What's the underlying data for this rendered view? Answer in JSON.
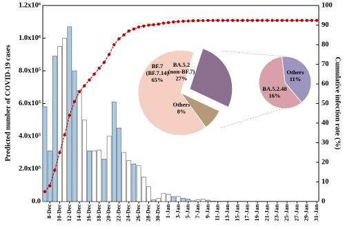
{
  "chart_data": [
    {
      "type": "bar",
      "y_label": "Predicted number of COVID-19 cases",
      "y2_label": "Cumulative infection rate (%)",
      "categories": [
        null,
        "8-Dec",
        null,
        "10-Dec",
        null,
        "12-Dec",
        null,
        "14-Dec",
        null,
        "16-Dec",
        null,
        "18-Dec",
        null,
        "20-Dec",
        null,
        "22-Dec",
        null,
        "24-Dec",
        null,
        "26-Dec",
        null,
        "28-Dec",
        null,
        "30-Dec",
        null,
        "1-Jan",
        null,
        "3-Jan",
        null,
        "5-Jan",
        null,
        "7-Jan",
        null,
        "9-Jan",
        null,
        "11-Jan",
        null,
        "13-Jan",
        null,
        "15-Jan",
        null,
        "17-Jan",
        null,
        "19-Jan",
        null,
        "21-Jan",
        null,
        "23-Jan",
        null,
        "25-Jan",
        null,
        "27-Jan",
        null,
        "29-Jan",
        null,
        "31-Jan"
      ],
      "series": [
        {
          "color": "#a9cbe3",
          "values": [
            580000,
            310000,
            890000,
            null,
            null,
            1070000,
            800000,
            null,
            null,
            310000,
            null,
            null,
            260000,
            null,
            610000,
            450000,
            null,
            null,
            230000,
            null,
            null,
            null,
            10000,
            null,
            null,
            null,
            30000,
            null,
            20000,
            15000,
            null,
            null,
            null,
            8000,
            null,
            null,
            null,
            null,
            null,
            null,
            null,
            null,
            null,
            null,
            null,
            null,
            null,
            null,
            null,
            null,
            null,
            null,
            null,
            null,
            null,
            null
          ]
        },
        {
          "color": "#ffffff",
          "values": [
            null,
            null,
            null,
            950000,
            1000000,
            null,
            null,
            680000,
            500000,
            null,
            310000,
            315000,
            null,
            400000,
            null,
            null,
            300000,
            250000,
            null,
            220000,
            150000,
            90000,
            null,
            20000,
            50000,
            45000,
            null,
            30000,
            null,
            null,
            5000,
            10000,
            15000,
            null,
            3000,
            2000,
            2000,
            2000,
            2000,
            2000,
            2000,
            2000,
            2000,
            2000,
            2000,
            2000,
            2000,
            2000,
            2000,
            2000,
            2000,
            2000,
            2000,
            2000,
            2000,
            2000
          ]
        },
        {
          "type": "line",
          "axis": "y2",
          "color": "#c00000",
          "values": [
            5,
            8,
            16,
            25,
            34,
            44,
            51,
            56,
            59,
            62,
            65,
            68,
            71,
            75,
            80,
            83,
            85,
            87,
            88,
            89,
            89.5,
            90,
            90.2,
            90.5,
            91,
            91.3,
            91.6,
            91.8,
            92,
            92.1,
            92.2,
            92.3,
            92.3,
            92.4,
            92.4,
            92.4,
            92.4,
            92.4,
            92.4,
            92.4,
            92.4,
            92.4,
            92.4,
            92.4,
            92.4,
            92.4,
            92.4,
            92.4,
            92.4,
            92.4,
            92.4,
            92.4,
            92.4,
            92.4,
            92.4,
            92.4
          ]
        }
      ],
      "ylim": [
        0,
        1200000
      ],
      "yticks": [
        {
          "value": 0,
          "label": "0.0"
        },
        {
          "value": 200000,
          "label": "2.0x10⁵"
        },
        {
          "value": 400000,
          "label": "4.0x10⁵"
        },
        {
          "value": 600000,
          "label": "6.0x10⁵"
        },
        {
          "value": 800000,
          "label": "8.0x10⁵"
        },
        {
          "value": 1000000,
          "label": "1.0x10⁶"
        },
        {
          "value": 1200000,
          "label": "1.2x10⁶"
        }
      ],
      "y2lim": [
        0,
        100
      ],
      "y2ticks": [
        0,
        10,
        20,
        30,
        40,
        50,
        60,
        70,
        80,
        90,
        100
      ]
    },
    {
      "type": "pie",
      "labels": [
        [
          "BF.7",
          "(BF.7.14)"
        ],
        [
          "BA.5.2",
          "(non-BF.7)"
        ],
        [
          "Others"
        ]
      ],
      "values": [
        65,
        27,
        8
      ],
      "value_labels": [
        "65%",
        "27%",
        "8%"
      ],
      "colors": [
        "#f5cfc1",
        "#8c6f8f",
        "#b49a78"
      ]
    },
    {
      "type": "pie",
      "labels": [
        [
          "BA.5.2.48"
        ],
        [
          "Others"
        ]
      ],
      "values": [
        16,
        11
      ],
      "value_labels": [
        "16%",
        "11%"
      ],
      "colors": [
        "#d8a1aa",
        "#9d94bf"
      ]
    }
  ]
}
